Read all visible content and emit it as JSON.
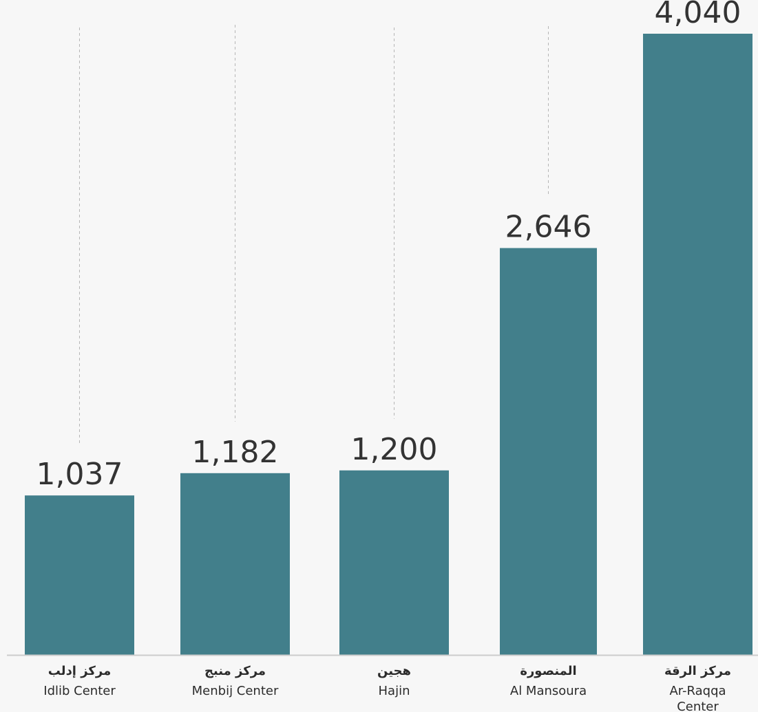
{
  "chart_data": {
    "type": "bar",
    "categories": [
      {
        "ar": "مركز إدلب",
        "en": [
          "Idlib Center"
        ]
      },
      {
        "ar": "مركز منبج",
        "en": [
          "Menbij Center"
        ]
      },
      {
        "ar": "هجين",
        "en": [
          "Hajin"
        ]
      },
      {
        "ar": "المنصورة",
        "en": [
          "Al Mansoura"
        ]
      },
      {
        "ar": "مركز الرقة",
        "en": [
          "Ar-Raqqa",
          "Center"
        ]
      }
    ],
    "values": [
      1037,
      1182,
      1200,
      2646,
      4040
    ],
    "value_labels": [
      "1,037",
      "1,182",
      "1,200",
      "2,646",
      "4,040"
    ],
    "ylim": [
      0,
      4040
    ],
    "title": "",
    "xlabel": "",
    "ylabel": "",
    "grid": false,
    "legend": "none",
    "colors": {
      "bar": "#427f8b",
      "text": "#333333",
      "baseline": "#cccccc",
      "guide": "#b5b5b5",
      "background": "#f7f7f7"
    }
  }
}
